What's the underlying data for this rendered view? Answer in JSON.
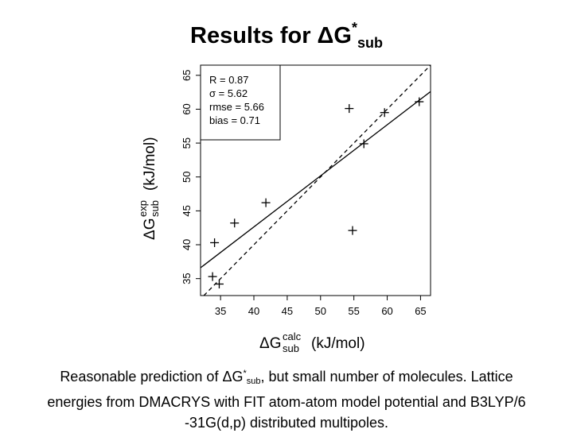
{
  "title": {
    "main": "Results for ΔG",
    "sup": "*",
    "sub": "sub"
  },
  "caption": {
    "part1": "Reasonable prediction of ΔG",
    "sup": "*",
    "sub": "sub",
    "part2": ", but small number of molecules. Lattice",
    "line2": "energies from DMACRYS with FIT atom-atom model potential and B3LYP/6",
    "line3": "-31G(d,p) distributed multipoles."
  },
  "chart_data": {
    "type": "scatter",
    "xlabel": {
      "delta": "ΔG",
      "sup": "calc",
      "sub": "sub",
      "unit": "(kJ/mol)"
    },
    "ylabel": {
      "delta": "ΔG",
      "sup": "exp",
      "sub": "sub",
      "unit": "(kJ/mol)"
    },
    "xlim": [
      32,
      66.5
    ],
    "ylim": [
      32.5,
      66.5
    ],
    "xticks": [
      "35",
      "40",
      "45",
      "50",
      "55",
      "60",
      "65"
    ],
    "yticks": [
      "35",
      "40",
      "45",
      "50",
      "55",
      "60",
      "65"
    ],
    "points": [
      {
        "x": 33.8,
        "y": 35.3
      },
      {
        "x": 34.8,
        "y": 34.2
      },
      {
        "x": 34.1,
        "y": 40.3
      },
      {
        "x": 37.1,
        "y": 43.2
      },
      {
        "x": 41.8,
        "y": 46.2
      },
      {
        "x": 54.3,
        "y": 60.1
      },
      {
        "x": 54.8,
        "y": 42.1
      },
      {
        "x": 56.5,
        "y": 54.9
      },
      {
        "x": 59.6,
        "y": 59.5
      },
      {
        "x": 64.8,
        "y": 61.1
      }
    ],
    "fit_line": {
      "x": [
        32,
        66.5
      ],
      "y": [
        36.6,
        62.6
      ]
    },
    "identity_line": {
      "x": [
        32.5,
        66.5
      ],
      "y": [
        32.5,
        66.5
      ]
    },
    "legend": {
      "position": "top-left",
      "entries": [
        "R = 0.87",
        "σ = 5.62",
        "rmse = 5.66",
        "bias = 0.71"
      ]
    }
  }
}
